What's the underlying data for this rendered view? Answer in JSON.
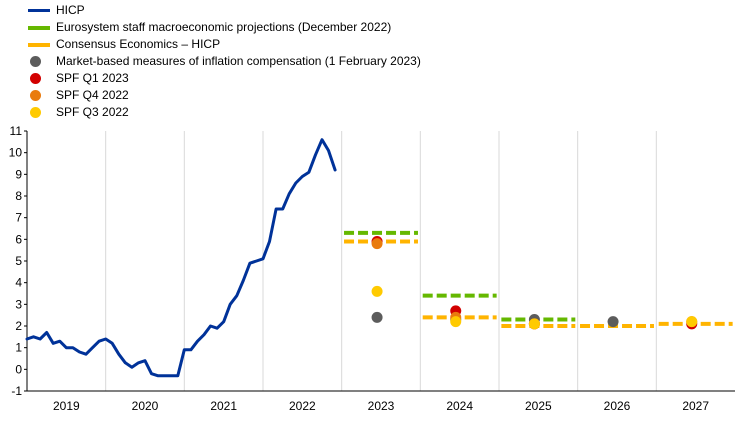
{
  "chart_data": {
    "type": "line",
    "title": "",
    "xlabel": "",
    "ylabel": "",
    "ylim": [
      -1,
      11
    ],
    "yticks": [
      -1,
      0,
      1,
      2,
      3,
      4,
      5,
      6,
      7,
      8,
      9,
      10,
      11
    ],
    "xlim": [
      2019.0,
      2028.0
    ],
    "x_categories": [
      "2019",
      "2020",
      "2021",
      "2022",
      "2023",
      "2024",
      "2025",
      "2026",
      "2027"
    ],
    "grid": "vertical separators between years",
    "legend_position": "top-left",
    "series": [
      {
        "name": "HICP",
        "kind": "solid-line",
        "color": "#003299",
        "x": [
          2019.0,
          2019.083,
          2019.167,
          2019.25,
          2019.333,
          2019.417,
          2019.5,
          2019.583,
          2019.667,
          2019.75,
          2019.833,
          2019.917,
          2020.0,
          2020.083,
          2020.167,
          2020.25,
          2020.333,
          2020.417,
          2020.5,
          2020.583,
          2020.667,
          2020.75,
          2020.833,
          2020.917,
          2021.0,
          2021.083,
          2021.167,
          2021.25,
          2021.333,
          2021.417,
          2021.5,
          2021.583,
          2021.667,
          2021.75,
          2021.833,
          2021.917,
          2022.0,
          2022.083,
          2022.167,
          2022.25,
          2022.333,
          2022.417,
          2022.5,
          2022.583,
          2022.667,
          2022.75,
          2022.833,
          2022.917
        ],
        "values": [
          1.4,
          1.5,
          1.4,
          1.7,
          1.2,
          1.3,
          1.0,
          1.0,
          0.8,
          0.7,
          1.0,
          1.3,
          1.4,
          1.2,
          0.7,
          0.3,
          0.1,
          0.3,
          0.4,
          -0.2,
          -0.3,
          -0.3,
          -0.3,
          -0.3,
          0.9,
          0.9,
          1.3,
          1.6,
          2.0,
          1.9,
          2.2,
          3.0,
          3.4,
          4.1,
          4.9,
          5.0,
          5.1,
          5.9,
          7.4,
          7.4,
          8.1,
          8.6,
          8.9,
          9.1,
          9.9,
          10.6,
          10.1,
          9.2
        ]
      },
      {
        "name": "Eurosystem staff macroeconomic projections (December 2022)",
        "kind": "dashed-line",
        "color": "#65B800",
        "segments": [
          {
            "year": "2023",
            "value": 6.3
          },
          {
            "year": "2024",
            "value": 3.4
          },
          {
            "year": "2025",
            "value": 2.3
          }
        ]
      },
      {
        "name": "Consensus Economics – HICP",
        "kind": "dashed-line",
        "color": "#FFB400",
        "segments": [
          {
            "year": "2023",
            "value": 5.9
          },
          {
            "year": "2024",
            "value": 2.4
          },
          {
            "year": "2025",
            "value": 2.0
          },
          {
            "year": "2026",
            "value": 2.0
          },
          {
            "year": "2027",
            "value": 2.1
          }
        ]
      },
      {
        "name": "Market-based measures of inflation compensation (1 February 2023)",
        "kind": "points",
        "color": "#5C5C5C",
        "points": [
          {
            "year": "2023",
            "value": 2.4
          },
          {
            "year": "2024",
            "value": 2.3
          },
          {
            "year": "2025",
            "value": 2.3
          },
          {
            "year": "2026",
            "value": 2.2
          }
        ]
      },
      {
        "name": "SPF Q1 2023",
        "kind": "points",
        "color": "#D20000",
        "points": [
          {
            "year": "2023",
            "value": 5.9
          },
          {
            "year": "2024",
            "value": 2.7
          },
          {
            "year": "2025",
            "value": 2.1
          },
          {
            "year": "2027",
            "value": 2.1
          }
        ]
      },
      {
        "name": "SPF Q4 2022",
        "kind": "points",
        "color": "#E97B0E",
        "points": [
          {
            "year": "2023",
            "value": 5.8
          },
          {
            "year": "2024",
            "value": 2.4
          },
          {
            "year": "2025",
            "value": 2.1
          },
          {
            "year": "2027",
            "value": 2.2
          }
        ]
      },
      {
        "name": "SPF Q3 2022",
        "kind": "points",
        "color": "#FFCA00",
        "points": [
          {
            "year": "2023",
            "value": 3.6
          },
          {
            "year": "2024",
            "value": 2.2
          },
          {
            "year": "2025",
            "value": 2.1
          },
          {
            "year": "2027",
            "value": 2.2
          }
        ]
      }
    ]
  }
}
